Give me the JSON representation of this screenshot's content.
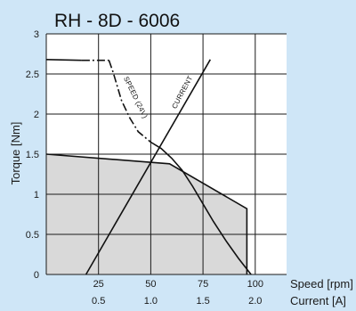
{
  "chart_data": {
    "type": "line",
    "title": "RH - 8D - 6006",
    "ylabel": "Torque [Nm]",
    "x_axes": [
      {
        "label": "Speed [rpm]",
        "ticks": [
          "25",
          "50",
          "75",
          "100"
        ],
        "range": [
          0,
          115
        ]
      },
      {
        "label": "Current [A]",
        "ticks": [
          "0.5",
          "1.0",
          "1.5",
          "2.0"
        ],
        "range": [
          0,
          2.3
        ]
      }
    ],
    "y_ticks": [
      "0",
      "0.5",
      "1",
      "1.5",
      "2",
      "2.5",
      "3"
    ],
    "ylim": [
      0,
      3
    ],
    "grid": true,
    "colors": {
      "background": "#cfe6f7",
      "region_fill": "#d9d9d9",
      "plot_bg": "#ffffff",
      "line": "#111111"
    },
    "series": [
      {
        "name": "SPEED (24V)",
        "x_unit": "rpm",
        "points": [
          [
            0,
            2.68
          ],
          [
            17,
            2.67
          ],
          [
            30,
            2.67
          ],
          [
            32,
            2.52
          ],
          [
            36,
            2.17
          ],
          [
            40,
            1.95
          ],
          [
            44,
            1.78
          ],
          [
            50,
            1.65
          ],
          [
            55,
            1.57
          ],
          [
            60,
            1.45
          ],
          [
            65,
            1.3
          ],
          [
            70,
            1.1
          ],
          [
            75,
            0.88
          ],
          [
            80,
            0.66
          ],
          [
            86,
            0.42
          ],
          [
            92,
            0.2
          ],
          [
            98,
            0
          ]
        ],
        "dashed_from_x": 31
      },
      {
        "name": "CURRENT",
        "x_unit": "A",
        "points": [
          [
            0.38,
            0
          ],
          [
            1.57,
            2.68
          ]
        ]
      },
      {
        "name": "",
        "x_unit": "rpm",
        "points": [
          [
            0,
            0
          ],
          [
            0,
            1.5
          ],
          [
            59,
            1.38
          ],
          [
            96,
            0.82
          ],
          [
            96,
            0
          ]
        ],
        "filled": true
      }
    ]
  }
}
